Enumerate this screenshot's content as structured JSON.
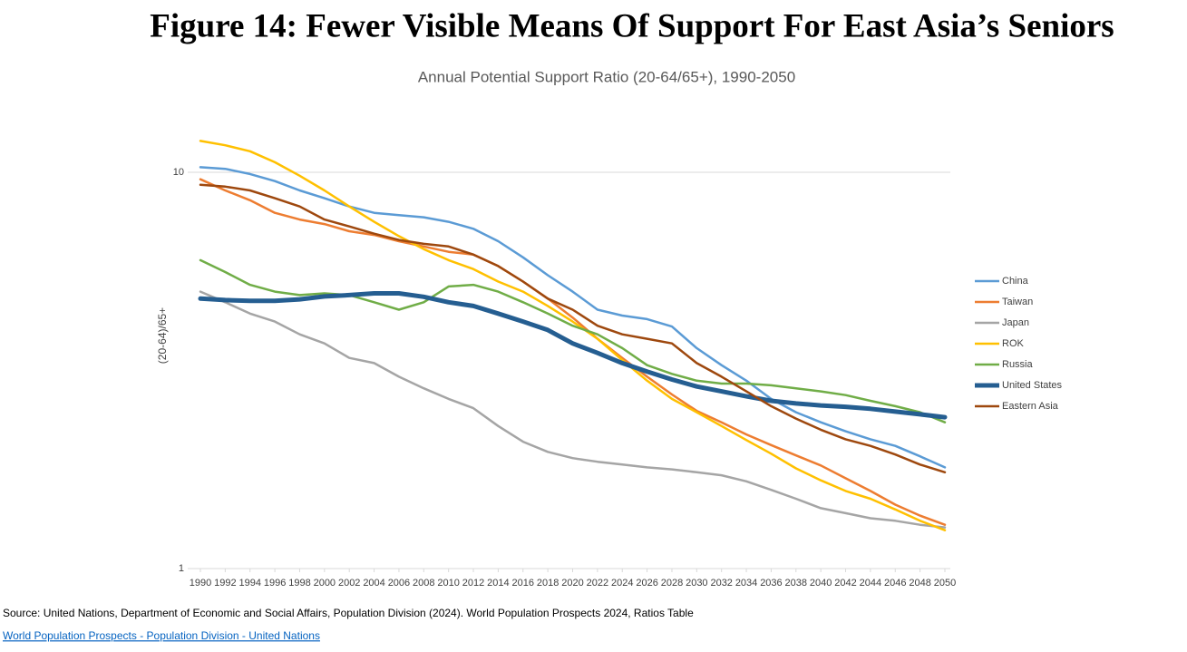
{
  "chart_data": {
    "type": "line",
    "title": "Figure 14: Fewer Visible Means Of Support For East Asia’s Seniors",
    "subtitle": "Annual Potential Support Ratio (20-64/65+), 1990-2050",
    "y_label": "(20-64)/65+",
    "y_scale": "log",
    "grid": true,
    "legend": "right",
    "ylim": [
      1,
      13
    ],
    "yticks": [
      1,
      10
    ],
    "xlim": [
      1990,
      2050
    ],
    "xticks": [
      1990,
      1992,
      1994,
      1996,
      1998,
      2000,
      2002,
      2004,
      2006,
      2008,
      2010,
      2012,
      2014,
      2016,
      2018,
      2020,
      2022,
      2024,
      2026,
      2028,
      2030,
      2032,
      2034,
      2036,
      2038,
      2040,
      2042,
      2044,
      2046,
      2048,
      2050
    ],
    "x": [
      1990,
      1992,
      1994,
      1996,
      1998,
      2000,
      2002,
      2004,
      2006,
      2008,
      2010,
      2012,
      2014,
      2016,
      2018,
      2020,
      2022,
      2024,
      2026,
      2028,
      2030,
      2032,
      2034,
      2036,
      2038,
      2040,
      2042,
      2044,
      2046,
      2048,
      2050
    ],
    "series": [
      {
        "name": "China",
        "color": "#5b9bd5",
        "line_width": 2.5,
        "values": [
          10.3,
          10.2,
          9.9,
          9.5,
          9.0,
          8.6,
          8.2,
          7.9,
          7.8,
          7.7,
          7.5,
          7.2,
          6.7,
          6.1,
          5.5,
          5.0,
          4.5,
          4.35,
          4.26,
          4.08,
          3.6,
          3.26,
          2.98,
          2.68,
          2.48,
          2.34,
          2.22,
          2.12,
          2.04,
          1.92,
          1.8
        ]
      },
      {
        "name": "Taiwan",
        "color": "#ed7d31",
        "line_width": 2.5,
        "values": [
          9.6,
          9.0,
          8.5,
          7.9,
          7.6,
          7.4,
          7.1,
          6.95,
          6.7,
          6.5,
          6.3,
          6.2,
          5.8,
          5.3,
          4.8,
          4.3,
          3.8,
          3.4,
          3.05,
          2.75,
          2.5,
          2.34,
          2.18,
          2.05,
          1.93,
          1.82,
          1.69,
          1.57,
          1.45,
          1.36,
          1.29
        ]
      },
      {
        "name": "Japan",
        "color": "#a5a5a5",
        "line_width": 2.5,
        "values": [
          5.0,
          4.7,
          4.4,
          4.2,
          3.9,
          3.7,
          3.4,
          3.3,
          3.05,
          2.85,
          2.68,
          2.54,
          2.29,
          2.09,
          1.97,
          1.9,
          1.86,
          1.83,
          1.8,
          1.78,
          1.75,
          1.72,
          1.66,
          1.58,
          1.5,
          1.42,
          1.38,
          1.34,
          1.32,
          1.29,
          1.27
        ]
      },
      {
        "name": "ROK",
        "color": "#ffc000",
        "line_width": 2.5,
        "values": [
          12.0,
          11.7,
          11.3,
          10.6,
          9.8,
          9.0,
          8.2,
          7.5,
          6.9,
          6.4,
          6.0,
          5.7,
          5.3,
          5.0,
          4.6,
          4.2,
          3.8,
          3.36,
          2.98,
          2.68,
          2.48,
          2.29,
          2.11,
          1.95,
          1.79,
          1.67,
          1.57,
          1.5,
          1.41,
          1.32,
          1.25
        ]
      },
      {
        "name": "Russia",
        "color": "#70ad47",
        "line_width": 2.5,
        "values": [
          6.0,
          5.6,
          5.2,
          5.0,
          4.9,
          4.95,
          4.9,
          4.7,
          4.5,
          4.7,
          5.15,
          5.2,
          5.0,
          4.7,
          4.4,
          4.1,
          3.9,
          3.6,
          3.26,
          3.1,
          2.98,
          2.93,
          2.93,
          2.9,
          2.85,
          2.8,
          2.74,
          2.65,
          2.57,
          2.48,
          2.34
        ]
      },
      {
        "name": "United States",
        "color": "#255e91",
        "line_width": 5,
        "values": [
          4.8,
          4.76,
          4.74,
          4.74,
          4.78,
          4.86,
          4.9,
          4.95,
          4.95,
          4.85,
          4.7,
          4.6,
          4.4,
          4.2,
          4.0,
          3.7,
          3.5,
          3.3,
          3.14,
          3.0,
          2.88,
          2.8,
          2.72,
          2.65,
          2.61,
          2.58,
          2.56,
          2.53,
          2.49,
          2.45,
          2.41
        ]
      },
      {
        "name": "Eastern Asia",
        "color": "#9e480e",
        "line_width": 2.5,
        "values": [
          9.3,
          9.2,
          9.0,
          8.6,
          8.2,
          7.6,
          7.3,
          7.0,
          6.75,
          6.6,
          6.5,
          6.2,
          5.8,
          5.3,
          4.8,
          4.5,
          4.1,
          3.9,
          3.8,
          3.7,
          3.3,
          3.05,
          2.8,
          2.57,
          2.39,
          2.24,
          2.12,
          2.04,
          1.94,
          1.83,
          1.75
        ]
      }
    ]
  },
  "source": "Source: United Nations, Department of Economic and Social Affairs, Population Division (2024). World Population Prospects 2024, Ratios Table",
  "link": "World Population Prospects - Population Division - United Nations"
}
